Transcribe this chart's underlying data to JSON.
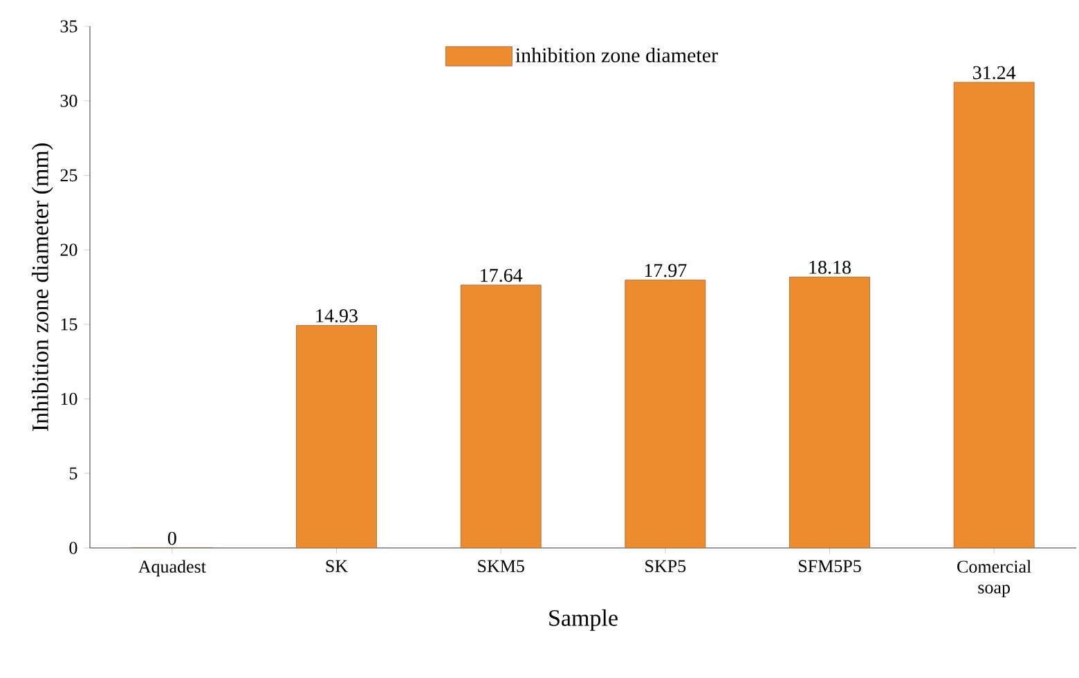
{
  "chart_data": {
    "type": "bar",
    "xlabel": "Sample",
    "ylabel": "Inhibition zone diameter (mm)",
    "categories": [
      "Aquadest",
      "SK",
      "SKM5",
      "SKP5",
      "SFM5P5",
      "Comercial soap"
    ],
    "series": [
      {
        "name": "inhibition zone diameter",
        "color": "#ed8b2f",
        "values": [
          0,
          14.93,
          17.64,
          17.97,
          18.18,
          31.24
        ]
      }
    ],
    "ylim": [
      0,
      35
    ],
    "yticks": [
      0,
      5,
      10,
      15,
      20,
      25,
      30,
      35
    ],
    "data_labels": true,
    "legend": "top",
    "grid": false
  }
}
